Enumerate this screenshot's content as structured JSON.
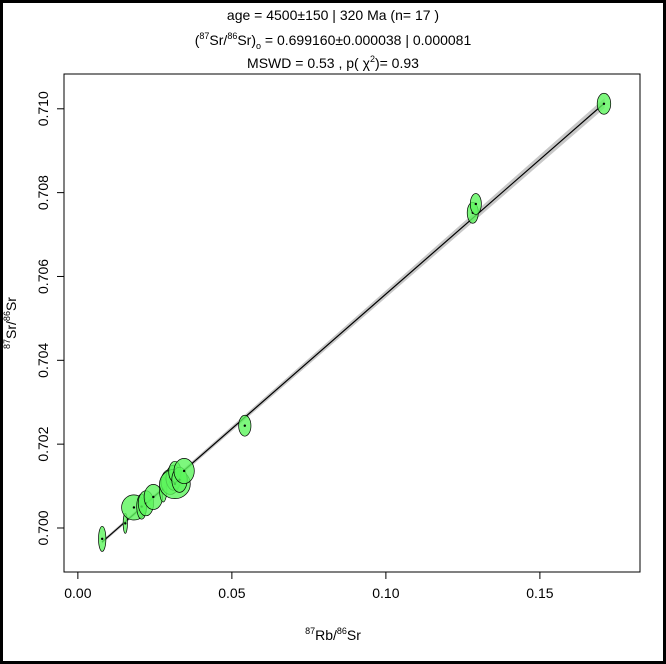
{
  "chart_data": {
    "type": "scatter",
    "title_lines": {
      "age": "age = 4500±150 | 320 Ma (n= 17 )",
      "initial_prefix": "(",
      "initial_sup1": "87",
      "initial_mid": "Sr/",
      "initial_sup2": "86",
      "initial_sr": "Sr)",
      "initial_sub": "o",
      "initial_value": " =  0.699160±0.000038 | 0.000081",
      "mswd": "MSWD = 0.53 , p( χ",
      "mswd_sup": "2",
      "mswd_end": ")= 0.93"
    },
    "xlabel": {
      "sup1": "87",
      "a": "Rb/",
      "sup2": "86",
      "b": "Sr"
    },
    "ylabel": {
      "sup1": "87",
      "a": "Sr/",
      "sup2": "86",
      "b": "Sr"
    },
    "xlim": [
      -0.0045,
      0.1825
    ],
    "ylim": [
      0.69895,
      0.71083
    ],
    "xticks": [
      "0.00",
      "0.05",
      "0.10",
      "0.15"
    ],
    "yticks": [
      "0.700",
      "0.702",
      "0.704",
      "0.706",
      "0.708",
      "0.710"
    ],
    "fit": {
      "intercept": 0.69916,
      "slope": 0.0642,
      "x_range": [
        0.0078,
        0.171
      ]
    },
    "colors": {
      "ellipse_fill": "#5df55d",
      "ellipse_stroke": "#000000",
      "envelope": "#c8c8c8",
      "line": "#000000"
    },
    "points": [
      {
        "x": 0.0079,
        "y": 0.69974,
        "sx": 0.0012,
        "sy": 0.0003
      },
      {
        "x": 0.0154,
        "y": 0.70011,
        "sx": 0.0007,
        "sy": 0.00024
      },
      {
        "x": 0.0182,
        "y": 0.70049,
        "sx": 0.004,
        "sy": 0.0003
      },
      {
        "x": 0.0207,
        "y": 0.70051,
        "sx": 0.0016,
        "sy": 0.0003
      },
      {
        "x": 0.0221,
        "y": 0.70059,
        "sx": 0.0025,
        "sy": 0.0003
      },
      {
        "x": 0.0245,
        "y": 0.70074,
        "sx": 0.003,
        "sy": 0.0003
      },
      {
        "x": 0.0277,
        "y": 0.70092,
        "sx": 0.0012,
        "sy": 0.0003
      },
      {
        "x": 0.03,
        "y": 0.7011,
        "sx": 0.003,
        "sy": 0.0003
      },
      {
        "x": 0.0311,
        "y": 0.7012,
        "sx": 0.0025,
        "sy": 0.0003
      },
      {
        "x": 0.0315,
        "y": 0.70105,
        "sx": 0.005,
        "sy": 0.00035
      },
      {
        "x": 0.0315,
        "y": 0.70134,
        "sx": 0.002,
        "sy": 0.00025
      },
      {
        "x": 0.033,
        "y": 0.70115,
        "sx": 0.0025,
        "sy": 0.0003
      },
      {
        "x": 0.0345,
        "y": 0.70136,
        "sx": 0.0033,
        "sy": 0.0003
      },
      {
        "x": 0.0542,
        "y": 0.70244,
        "sx": 0.002,
        "sy": 0.00025
      },
      {
        "x": 0.1282,
        "y": 0.70752,
        "sx": 0.0018,
        "sy": 0.00025
      },
      {
        "x": 0.1292,
        "y": 0.70773,
        "sx": 0.0018,
        "sy": 0.00025
      },
      {
        "x": 0.1708,
        "y": 0.71012,
        "sx": 0.0022,
        "sy": 0.00025
      }
    ]
  }
}
